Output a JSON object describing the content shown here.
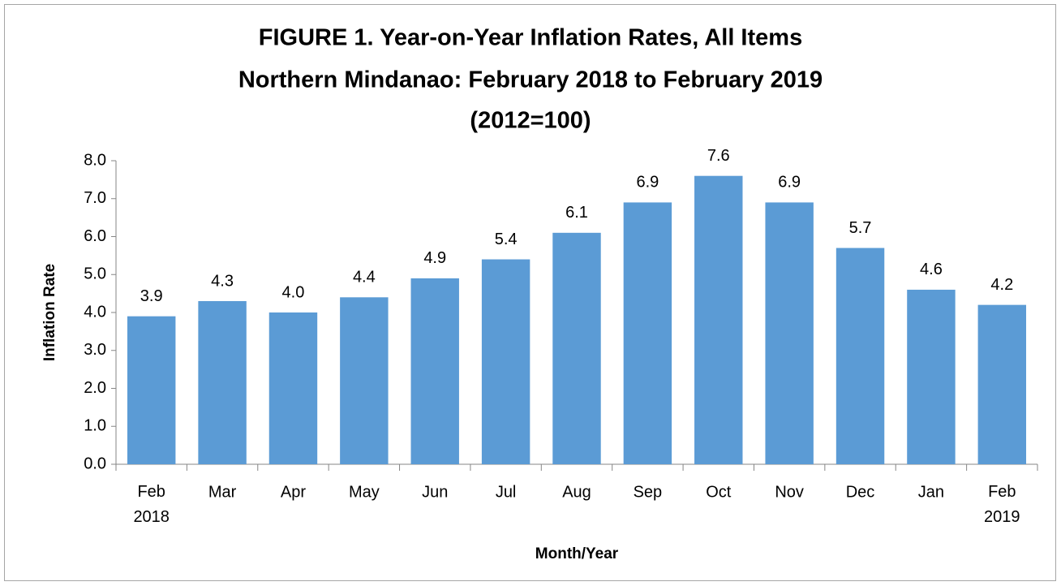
{
  "chart_data": {
    "type": "bar",
    "title": [
      "FIGURE 1. Year-on-Year Inflation Rates, All Items",
      "Northern Mindanao: February 2018 to February 2019",
      "(2012=100)"
    ],
    "xlabel": "Month/Year",
    "ylabel": "Inflation Rate",
    "categories": [
      "Feb 2018",
      "Mar",
      "Apr",
      "May",
      "Jun",
      "Jul",
      "Aug",
      "Sep",
      "Oct",
      "Nov",
      "Dec",
      "Jan",
      "Feb 2019"
    ],
    "values": [
      3.9,
      4.3,
      4.0,
      4.4,
      4.9,
      5.4,
      6.1,
      6.9,
      7.6,
      6.9,
      5.7,
      4.6,
      4.2
    ],
    "value_labels": [
      "3.9",
      "4.3",
      "4.0",
      "4.4",
      "4.9",
      "5.4",
      "6.1",
      "6.9",
      "7.6",
      "6.9",
      "5.7",
      "4.6",
      "4.2"
    ],
    "color": "#5b9bd5",
    "ylim": [
      0,
      8
    ],
    "yticks": [
      {
        "value": 0,
        "label": "0.0"
      },
      {
        "value": 1,
        "label": "1.0"
      },
      {
        "value": 2,
        "label": "2.0"
      },
      {
        "value": 3,
        "label": "3.0"
      },
      {
        "value": 4,
        "label": "4.0"
      },
      {
        "value": 5,
        "label": "5.0"
      },
      {
        "value": 6,
        "label": "6.0"
      },
      {
        "value": 7,
        "label": "7.0"
      },
      {
        "value": 8,
        "label": "8.0"
      }
    ],
    "grid": false
  }
}
